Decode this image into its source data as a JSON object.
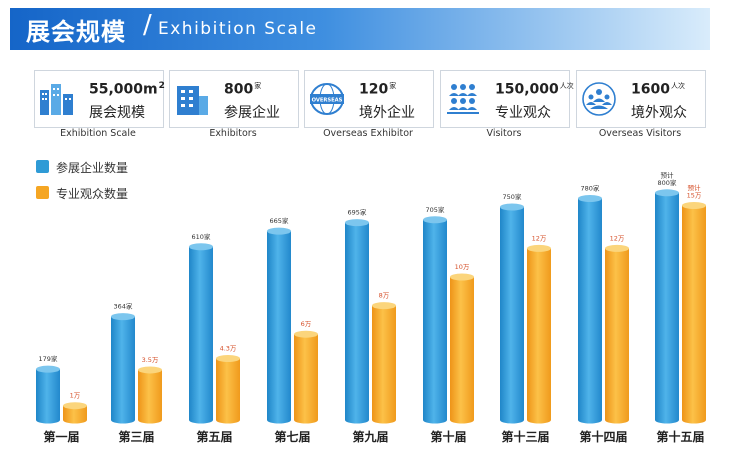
{
  "header": {
    "title_cn": "展会规模",
    "separator": "/",
    "title_en": "Exhibition Scale"
  },
  "stats": [
    {
      "number": "55,000m",
      "unit": "2",
      "label": "展会规模",
      "label_en": "Exhibition Scale",
      "icon": "buildings-icon"
    },
    {
      "number": "800",
      "unit": "家",
      "label": "参展企业",
      "label_en": "Exhibitors",
      "icon": "office-building-icon"
    },
    {
      "number": "120",
      "unit": "家",
      "label": "境外企业",
      "label_en": "Overseas Exhibitor",
      "icon": "overseas-badge-icon",
      "badge_text": "OVERSEAS"
    },
    {
      "number": "150,000",
      "unit": "人次",
      "label": "专业观众",
      "label_en": "Visitors",
      "icon": "audience-icon"
    },
    {
      "number": "1600",
      "unit": "人次",
      "label": "境外观众",
      "label_en": "Overseas Visitors",
      "icon": "globe-people-icon"
    }
  ],
  "colors": {
    "blue": "#2f9bd6",
    "orange": "#f5a623",
    "label_orange": "#d6502a"
  },
  "chart_data": {
    "type": "bar",
    "title": "",
    "xlabel": "",
    "ylabel": "",
    "categories": [
      "第一届",
      "第三届",
      "第五届",
      "第七届",
      "第九届",
      "第十届",
      "第十三届",
      "第十四届",
      "第十五届"
    ],
    "series": [
      {
        "name": "参展企业数量",
        "values": [
          179,
          364,
          610,
          665,
          695,
          705,
          750,
          780,
          800
        ],
        "labels": [
          "179家",
          "364家",
          "610家",
          "665家",
          "695家",
          "705家",
          "750家",
          "780家",
          "预计\n800家"
        ]
      },
      {
        "name": "专业观众数量",
        "values": [
          1,
          3.5,
          4.3,
          6,
          8,
          10,
          12,
          12,
          15
        ],
        "labels": [
          "1万",
          "3.5万",
          "4.3万",
          "6万",
          "8万",
          "10万",
          "12万",
          "12万",
          "预计\n15万"
        ]
      }
    ]
  }
}
